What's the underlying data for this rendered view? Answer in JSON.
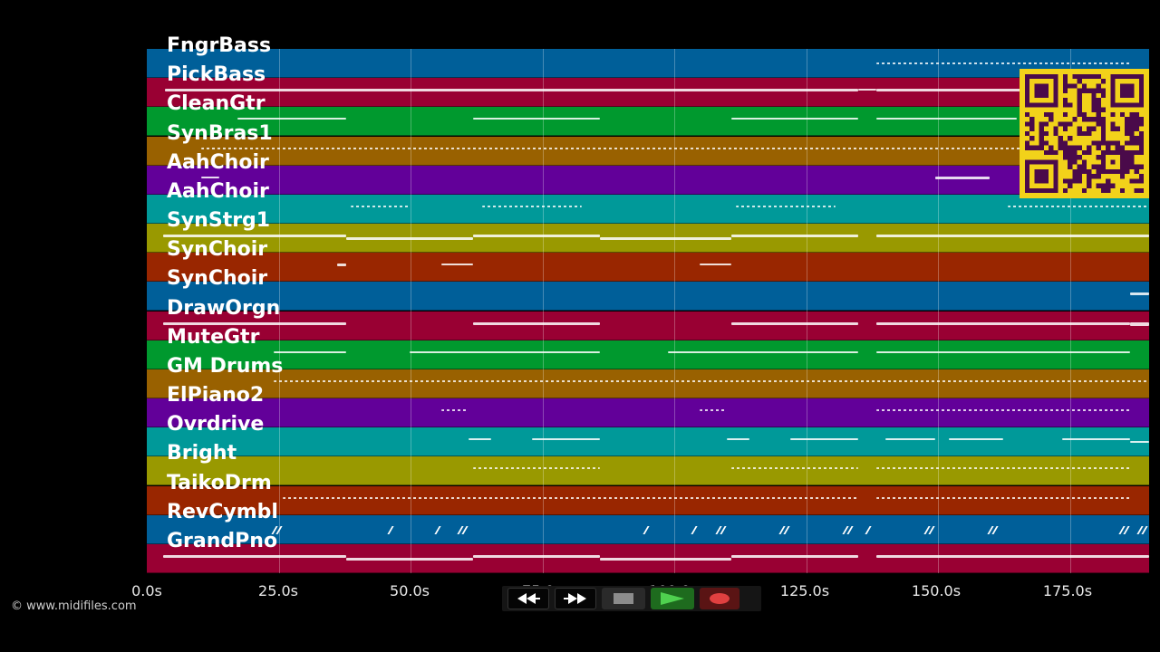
{
  "tracks": [
    {
      "name": "FngrBass",
      "color": "#005f99"
    },
    {
      "name": "PickBass",
      "color": "#990033"
    },
    {
      "name": "CleanGtr",
      "color": "#00992e"
    },
    {
      "name": "SynBras1",
      "color": "#996100"
    },
    {
      "name": "AahChoir",
      "color": "#620099"
    },
    {
      "name": "AahChoir",
      "color": "#009999"
    },
    {
      "name": "SynStrg1",
      "color": "#999900"
    },
    {
      "name": "SynChoir",
      "color": "#992600"
    },
    {
      "name": "SynChoir",
      "color": "#005f99"
    },
    {
      "name": "DrawOrgn",
      "color": "#990033"
    },
    {
      "name": "MuteGtr",
      "color": "#00992e"
    },
    {
      "name": "GM Drums",
      "color": "#996100"
    },
    {
      "name": "ElPiano2",
      "color": "#620099"
    },
    {
      "name": "Ovrdrive",
      "color": "#009999"
    },
    {
      "name": "Bright",
      "color": "#999900"
    },
    {
      "name": "TaikoDrm",
      "color": "#992600"
    },
    {
      "name": "RevCymbl",
      "color": "#005f99"
    },
    {
      "name": "GrandPno",
      "color": "#990033"
    }
  ],
  "timeline": {
    "ticks": [
      "0.0s",
      "25.0s",
      "50.0s",
      "75.0s",
      "100.0s",
      "125.0s",
      "150.0s",
      "175.0s"
    ]
  },
  "transport": {
    "rewind_icon": "rewind-icon",
    "forward_icon": "fast-forward-icon",
    "stop_icon": "stop-icon",
    "play_icon": "play-icon",
    "record_icon": "record-icon"
  },
  "qr_icon": "qr-code-icon",
  "copyright": "© www.midifiles.com"
}
